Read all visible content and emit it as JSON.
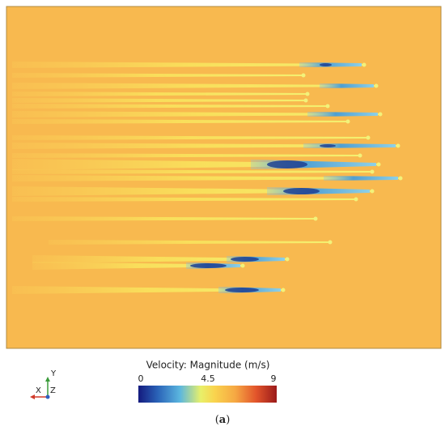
{
  "legend": {
    "title": "Velocity: Magnitude (m/s)",
    "ticks": [
      "0",
      "4.5",
      "9"
    ]
  },
  "axes_triad": {
    "y": "Y",
    "x": "X",
    "z": "Z"
  },
  "caption": {
    "open": "(",
    "letter": "a",
    "close": ")"
  }
}
